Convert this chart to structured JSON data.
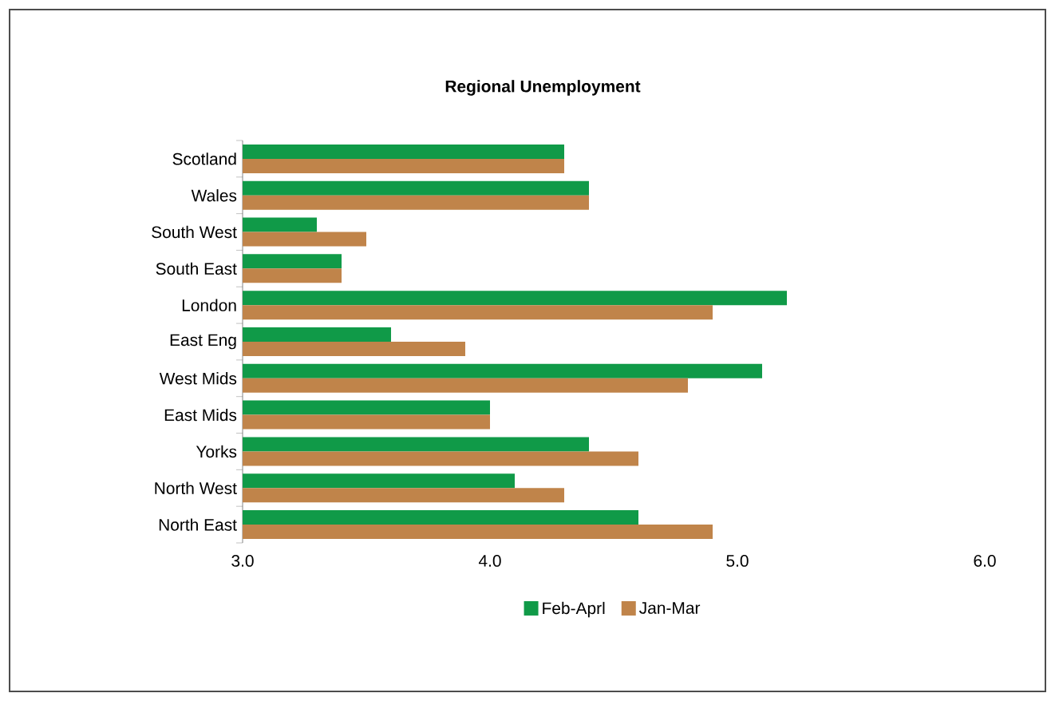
{
  "chart_data": {
    "type": "bar",
    "orientation": "horizontal",
    "title": "Regional Unemployment",
    "categories": [
      "Scotland",
      "Wales",
      "South West",
      "South East",
      "London",
      "East Eng",
      "West Mids",
      "East Mids",
      "Yorks",
      "North West",
      "North East"
    ],
    "series": [
      {
        "name": "Feb-Aprl",
        "color": "#109a48",
        "values": [
          4.3,
          4.4,
          3.3,
          3.4,
          5.2,
          3.6,
          5.1,
          4.0,
          4.4,
          4.1,
          4.6
        ]
      },
      {
        "name": "Jan-Mar",
        "color": "#c0844a",
        "values": [
          4.3,
          4.4,
          3.5,
          3.4,
          4.9,
          3.9,
          4.8,
          4.0,
          4.6,
          4.3,
          4.9
        ]
      }
    ],
    "xlim": [
      3,
      6
    ],
    "xticks": [
      {
        "value": 3,
        "label": "3.0"
      },
      {
        "value": 4,
        "label": "4.0"
      },
      {
        "value": 5,
        "label": "5.0"
      },
      {
        "value": 6,
        "label": "6.0"
      }
    ],
    "legend": "bottom"
  }
}
